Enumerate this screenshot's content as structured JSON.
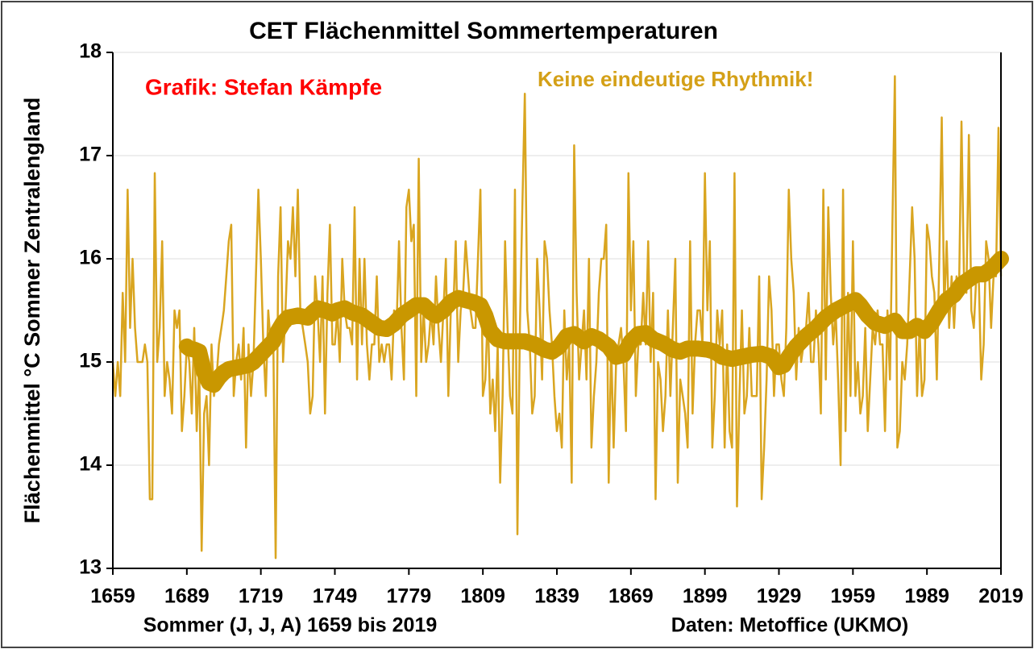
{
  "chart_data": {
    "type": "line",
    "title": "CET Flächenmittel Sommertemperaturen",
    "ylabel": "Flächenmittel °C Sommer Zentralengland",
    "xlabel": "Sommer (J, J, A) 1659 bis 2019",
    "annotations": [
      {
        "text": "Grafik: Stefan Kämpfe",
        "color": "#ff0000"
      },
      {
        "text": "Keine eindeutige Rhythmik!",
        "color": "#d4a017"
      },
      {
        "text": "Daten: Metoffice (UKMO)",
        "color": "#000000"
      }
    ],
    "xlim": [
      1659,
      2019
    ],
    "xticks": [
      1659,
      1689,
      1719,
      1749,
      1779,
      1809,
      1839,
      1869,
      1899,
      1929,
      1959,
      1989,
      2019
    ],
    "ylim": [
      13,
      18
    ],
    "yticks": [
      13,
      14,
      15,
      16,
      17,
      18
    ],
    "grid": true,
    "x": [
      1659,
      1660,
      1661,
      1662,
      1663,
      1664,
      1665,
      1666,
      1667,
      1668,
      1669,
      1670,
      1671,
      1672,
      1673,
      1674,
      1675,
      1676,
      1677,
      1678,
      1679,
      1680,
      1681,
      1682,
      1683,
      1684,
      1685,
      1686,
      1687,
      1688,
      1689,
      1690,
      1691,
      1692,
      1693,
      1694,
      1695,
      1696,
      1697,
      1698,
      1699,
      1700,
      1701,
      1702,
      1703,
      1704,
      1705,
      1706,
      1707,
      1708,
      1709,
      1710,
      1711,
      1712,
      1713,
      1714,
      1715,
      1716,
      1717,
      1718,
      1719,
      1720,
      1721,
      1722,
      1723,
      1724,
      1725,
      1726,
      1727,
      1728,
      1729,
      1730,
      1731,
      1732,
      1733,
      1734,
      1735,
      1736,
      1737,
      1738,
      1739,
      1740,
      1741,
      1742,
      1743,
      1744,
      1745,
      1746,
      1747,
      1748,
      1749,
      1750,
      1751,
      1752,
      1753,
      1754,
      1755,
      1756,
      1757,
      1758,
      1759,
      1760,
      1761,
      1762,
      1763,
      1764,
      1765,
      1766,
      1767,
      1768,
      1769,
      1770,
      1771,
      1772,
      1773,
      1774,
      1775,
      1776,
      1777,
      1778,
      1779,
      1780,
      1781,
      1782,
      1783,
      1784,
      1785,
      1786,
      1787,
      1788,
      1789,
      1790,
      1791,
      1792,
      1793,
      1794,
      1795,
      1796,
      1797,
      1798,
      1799,
      1800,
      1801,
      1802,
      1803,
      1804,
      1805,
      1806,
      1807,
      1808,
      1809,
      1810,
      1811,
      1812,
      1813,
      1814,
      1815,
      1816,
      1817,
      1818,
      1819,
      1820,
      1821,
      1822,
      1823,
      1824,
      1825,
      1826,
      1827,
      1828,
      1829,
      1830,
      1831,
      1832,
      1833,
      1834,
      1835,
      1836,
      1837,
      1838,
      1839,
      1840,
      1841,
      1842,
      1843,
      1844,
      1845,
      1846,
      1847,
      1848,
      1849,
      1850,
      1851,
      1852,
      1853,
      1854,
      1855,
      1856,
      1857,
      1858,
      1859,
      1860,
      1861,
      1862,
      1863,
      1864,
      1865,
      1866,
      1867,
      1868,
      1869,
      1870,
      1871,
      1872,
      1873,
      1874,
      1875,
      1876,
      1877,
      1878,
      1879,
      1880,
      1881,
      1882,
      1883,
      1884,
      1885,
      1886,
      1887,
      1888,
      1889,
      1890,
      1891,
      1892,
      1893,
      1894,
      1895,
      1896,
      1897,
      1898,
      1899,
      1900,
      1901,
      1902,
      1903,
      1904,
      1905,
      1906,
      1907,
      1908,
      1909,
      1910,
      1911,
      1912,
      1913,
      1914,
      1915,
      1916,
      1917,
      1918,
      1919,
      1920,
      1921,
      1922,
      1923,
      1924,
      1925,
      1926,
      1927,
      1928,
      1929,
      1930,
      1931,
      1932,
      1933,
      1934,
      1935,
      1936,
      1937,
      1938,
      1939,
      1940,
      1941,
      1942,
      1943,
      1944,
      1945,
      1946,
      1947,
      1948,
      1949,
      1950,
      1951,
      1952,
      1953,
      1954,
      1955,
      1956,
      1957,
      1958,
      1959,
      1960,
      1961,
      1962,
      1963,
      1964,
      1965,
      1966,
      1967,
      1968,
      1969,
      1970,
      1971,
      1972,
      1973,
      1974,
      1975,
      1976,
      1977,
      1978,
      1979,
      1980,
      1981,
      1982,
      1983,
      1984,
      1985,
      1986,
      1987,
      1988,
      1989,
      1990,
      1991,
      1992,
      1993,
      1994,
      1995,
      1996,
      1997,
      1998,
      1999,
      2000,
      2001,
      2002,
      2003,
      2004,
      2005,
      2006,
      2007,
      2008,
      2009,
      2010,
      2011,
      2012,
      2013,
      2014,
      2015,
      2016,
      2017,
      2018,
      2019
    ],
    "series": [
      {
        "color": "#d9a520",
        "values": [
          15.0,
          14.67,
          15.0,
          14.67,
          15.67,
          15.0,
          16.67,
          15.33,
          16.0,
          15.33,
          15.0,
          15.0,
          15.0,
          15.17,
          15.0,
          13.67,
          13.67,
          16.83,
          15.0,
          15.33,
          16.17,
          14.67,
          15.0,
          14.83,
          14.5,
          15.5,
          15.33,
          15.5,
          14.33,
          14.67,
          15.17,
          15.0,
          14.5,
          15.33,
          14.33,
          15.0,
          13.17,
          14.5,
          14.67,
          14.0,
          15.17,
          14.67,
          14.83,
          15.17,
          15.33,
          15.5,
          15.83,
          16.17,
          16.33,
          14.67,
          15.0,
          15.17,
          14.83,
          15.33,
          14.17,
          15.17,
          14.67,
          15.0,
          15.83,
          16.67,
          16.0,
          15.17,
          14.67,
          15.5,
          15.17,
          15.33,
          13.1,
          15.83,
          16.5,
          15.0,
          15.5,
          16.17,
          16.0,
          16.5,
          15.83,
          16.67,
          15.5,
          15.33,
          15.17,
          15.0,
          14.5,
          14.67,
          15.83,
          15.5,
          15.0,
          15.83,
          14.5,
          15.67,
          16.33,
          15.17,
          15.17,
          15.5,
          15.0,
          16.0,
          15.5,
          15.33,
          15.33,
          15.17,
          16.5,
          14.83,
          16.0,
          15.17,
          16.0,
          15.17,
          14.83,
          15.17,
          15.17,
          15.83,
          15.0,
          15.17,
          15.0,
          15.17,
          15.17,
          14.83,
          15.5,
          15.33,
          16.17,
          15.33,
          14.83,
          16.5,
          16.67,
          16.17,
          16.33,
          14.67,
          16.97,
          15.0,
          15.5,
          15.0,
          15.17,
          15.5,
          15.17,
          15.83,
          15.33,
          15.0,
          15.5,
          16.0,
          14.67,
          15.5,
          15.5,
          16.17,
          15.0,
          15.5,
          15.67,
          16.17,
          15.83,
          15.5,
          15.33,
          15.33,
          16.0,
          16.67,
          14.67,
          14.83,
          15.5,
          14.5,
          14.83,
          14.33,
          15.17,
          13.83,
          14.67,
          16.17,
          15.33,
          14.67,
          14.5,
          16.67,
          13.33,
          15.33,
          16.5,
          17.6,
          15.5,
          15.17,
          14.5,
          14.67,
          16.0,
          15.5,
          14.83,
          16.17,
          16.0,
          15.5,
          15.17,
          14.67,
          14.33,
          14.5,
          14.17,
          15.5,
          14.83,
          15.17,
          13.83,
          17.1,
          15.67,
          14.83,
          15.17,
          15.5,
          14.83,
          16.0,
          14.17,
          14.67,
          15.0,
          15.67,
          16.0,
          16.0,
          16.33,
          13.83,
          15.17,
          14.17,
          15.0,
          15.17,
          15.33,
          15.0,
          14.33,
          16.83,
          15.5,
          16.17,
          14.67,
          15.17,
          15.17,
          15.67,
          15.17,
          16.17,
          15.0,
          15.67,
          13.67,
          15.0,
          14.83,
          14.33,
          14.67,
          15.5,
          14.67,
          15.33,
          16.0,
          13.83,
          14.83,
          14.67,
          14.5,
          14.17,
          16.17,
          14.5,
          15.17,
          15.5,
          15.5,
          15.17,
          16.83,
          15.5,
          16.17,
          14.17,
          14.67,
          15.5,
          15.17,
          15.5,
          14.17,
          15.17,
          14.33,
          14.17,
          16.83,
          13.6,
          14.67,
          15.5,
          14.5,
          14.67,
          15.33,
          14.67,
          14.67,
          14.67,
          15.83,
          13.67,
          14.17,
          14.83,
          15.83,
          15.5,
          14.67,
          15.17,
          15.17,
          14.83,
          14.67,
          15.33,
          16.67,
          16.0,
          15.67,
          14.83,
          15.33,
          15.0,
          15.17,
          15.33,
          15.67,
          15.0,
          15.0,
          15.5,
          15.17,
          14.5,
          16.67,
          14.83,
          16.5,
          15.67,
          15.17,
          15.5,
          14.83,
          14.0,
          16.67,
          14.33,
          15.67,
          14.67,
          16.17,
          14.67,
          15.0,
          14.5,
          14.67,
          15.33,
          14.33,
          14.83,
          15.33,
          15.17,
          15.5,
          15.17,
          15.17,
          14.33,
          15.5,
          14.83,
          16.33,
          17.77,
          14.17,
          14.33,
          15.0,
          14.83,
          15.17,
          15.83,
          16.5,
          16.0,
          14.67,
          15.33,
          14.67,
          14.83,
          16.33,
          16.17,
          15.83,
          15.67,
          14.83,
          16.0,
          17.37,
          15.5,
          16.17,
          15.33,
          15.83,
          15.33,
          15.83,
          15.67,
          17.33,
          15.83,
          15.67,
          17.2,
          15.5,
          15.33,
          15.83,
          15.83,
          14.83,
          15.17,
          16.17,
          16.0,
          15.33,
          15.83,
          15.83,
          17.27,
          15.83
        ]
      },
      {
        "color": "#c99700",
        "x": [
          1689,
          1690,
          1692,
          1694,
          1695,
          1696,
          1698,
          1700,
          1702,
          1704,
          1706,
          1710,
          1714,
          1716,
          1718,
          1720,
          1722,
          1724,
          1726,
          1728,
          1730,
          1734,
          1738,
          1740,
          1742,
          1745,
          1748,
          1750,
          1753,
          1756,
          1760,
          1764,
          1767,
          1770,
          1773,
          1776,
          1779,
          1782,
          1785,
          1788,
          1790,
          1793,
          1796,
          1799,
          1802,
          1805,
          1808,
          1810,
          1812,
          1815,
          1818,
          1822,
          1826,
          1830,
          1834,
          1837,
          1840,
          1843,
          1846,
          1850,
          1853,
          1856,
          1860,
          1863,
          1866,
          1869,
          1872,
          1875,
          1878,
          1882,
          1886,
          1889,
          1892,
          1896,
          1900,
          1903,
          1906,
          1910,
          1914,
          1918,
          1922,
          1926,
          1929,
          1931,
          1933,
          1936,
          1940,
          1944,
          1948,
          1952,
          1956,
          1960,
          1962,
          1965,
          1968,
          1972,
          1976,
          1979,
          1982,
          1985,
          1988,
          1991,
          1994,
          1997,
          2000,
          2003,
          2006,
          2009,
          2012,
          2015,
          2019
        ],
        "values": [
          15.15,
          15.13,
          15.12,
          15.1,
          15.0,
          14.9,
          14.8,
          14.78,
          14.85,
          14.9,
          14.93,
          14.95,
          14.97,
          15.0,
          15.05,
          15.1,
          15.15,
          15.2,
          15.3,
          15.38,
          15.43,
          15.45,
          15.43,
          15.48,
          15.52,
          15.5,
          15.47,
          15.5,
          15.52,
          15.48,
          15.45,
          15.38,
          15.33,
          15.32,
          15.37,
          15.45,
          15.5,
          15.55,
          15.55,
          15.48,
          15.45,
          15.5,
          15.58,
          15.62,
          15.6,
          15.58,
          15.55,
          15.45,
          15.3,
          15.22,
          15.2,
          15.2,
          15.2,
          15.17,
          15.12,
          15.1,
          15.15,
          15.25,
          15.27,
          15.2,
          15.25,
          15.22,
          15.15,
          15.05,
          15.07,
          15.2,
          15.27,
          15.28,
          15.22,
          15.18,
          15.12,
          15.1,
          15.13,
          15.13,
          15.12,
          15.1,
          15.05,
          15.03,
          15.05,
          15.07,
          15.08,
          15.05,
          14.95,
          14.97,
          15.05,
          15.15,
          15.25,
          15.33,
          15.43,
          15.5,
          15.55,
          15.6,
          15.55,
          15.45,
          15.38,
          15.35,
          15.4,
          15.3,
          15.3,
          15.35,
          15.3,
          15.38,
          15.5,
          15.6,
          15.65,
          15.75,
          15.8,
          15.85,
          15.85,
          15.9,
          16.0
        ]
      }
    ]
  }
}
